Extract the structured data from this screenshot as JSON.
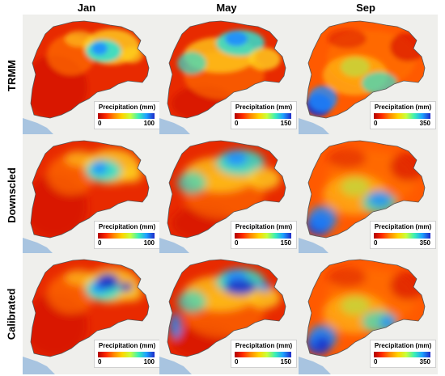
{
  "columns": [
    "Jan",
    "May",
    "Sep"
  ],
  "rows": [
    "TRMM",
    "Downscled",
    "Calibrated"
  ],
  "legend": {
    "title": "Precipitation (mm)",
    "min": "0",
    "max_by_column": [
      "100",
      "150",
      "350"
    ]
  },
  "colors": {
    "scale": [
      "#b10000",
      "#ff2a00",
      "#ff8a00",
      "#ffd400",
      "#c8ff3c",
      "#3cf0b4",
      "#1ea0ff",
      "#1e2ac8"
    ],
    "basemap": "#efefec",
    "water": "#a8c4e0"
  }
}
